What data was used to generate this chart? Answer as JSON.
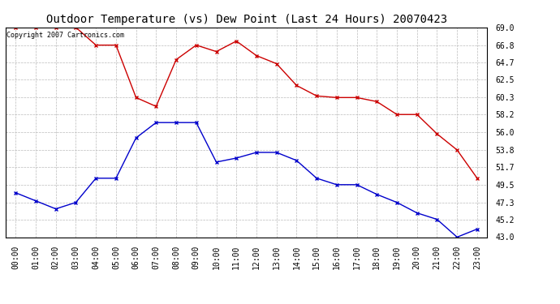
{
  "title": "Outdoor Temperature (vs) Dew Point (Last 24 Hours) 20070423",
  "copyright_text": "Copyright 2007 Cartronics.com",
  "x_labels": [
    "00:00",
    "01:00",
    "02:00",
    "03:00",
    "04:00",
    "05:00",
    "06:00",
    "07:00",
    "08:00",
    "09:00",
    "10:00",
    "11:00",
    "12:00",
    "13:00",
    "14:00",
    "15:00",
    "16:00",
    "17:00",
    "18:00",
    "19:00",
    "20:00",
    "21:00",
    "22:00",
    "23:00"
  ],
  "temp_data": [
    69.0,
    69.0,
    69.0,
    69.0,
    66.8,
    66.8,
    60.3,
    59.2,
    65.0,
    66.8,
    66.0,
    67.3,
    65.5,
    64.5,
    61.8,
    60.5,
    60.3,
    60.3,
    59.8,
    58.2,
    58.2,
    55.8,
    53.8,
    50.3
  ],
  "dew_data": [
    48.5,
    47.5,
    46.5,
    47.3,
    50.3,
    50.3,
    55.3,
    57.2,
    57.2,
    57.2,
    52.3,
    52.8,
    53.5,
    53.5,
    52.5,
    50.3,
    49.5,
    49.5,
    48.3,
    47.3,
    46.0,
    45.2,
    43.0,
    44.0
  ],
  "ylim_min": 43.0,
  "ylim_max": 69.0,
  "yticks": [
    43.0,
    45.2,
    47.3,
    49.5,
    51.7,
    53.8,
    56.0,
    58.2,
    60.3,
    62.5,
    64.7,
    66.8,
    69.0
  ],
  "temp_color": "#cc0000",
  "dew_color": "#0000cc",
  "background_color": "#ffffff",
  "grid_color": "#bbbbbb",
  "title_fontsize": 10,
  "copyright_fontsize": 6,
  "tick_fontsize": 7,
  "marker": "x",
  "marker_size": 3,
  "line_width": 1.0
}
